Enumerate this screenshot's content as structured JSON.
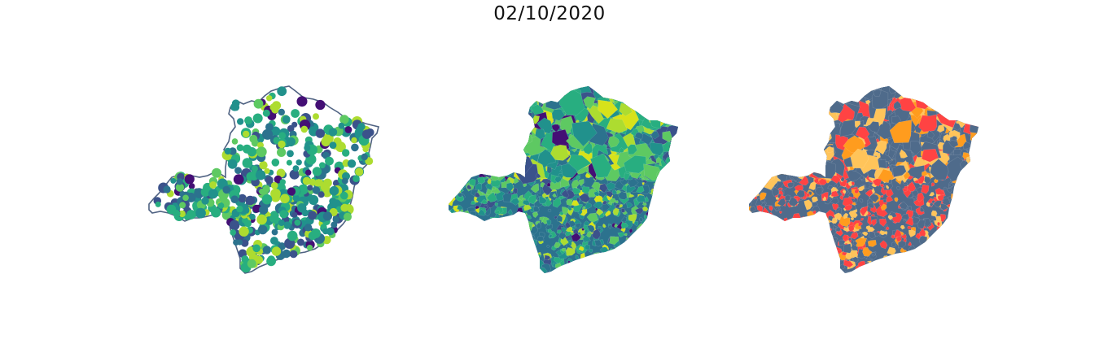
{
  "title": "02/10/2020",
  "panels": [
    {
      "id": "bubbles",
      "style": "points over outline"
    },
    {
      "id": "choropleth-continuous",
      "style": "filled municipalities, viridis scale"
    },
    {
      "id": "choropleth-categorical",
      "style": "filled municipalities, 4 categories"
    }
  ],
  "colors": {
    "outline": "#4f6282",
    "viridis": [
      "#440f75",
      "#3b528b",
      "#2c728e",
      "#21918c",
      "#28ae80",
      "#5ec962",
      "#addc30",
      "#d7e21a"
    ],
    "categorical": [
      "#4f6b8b",
      "#ffc45a",
      "#ff4343",
      "#ff9c1e"
    ]
  }
}
